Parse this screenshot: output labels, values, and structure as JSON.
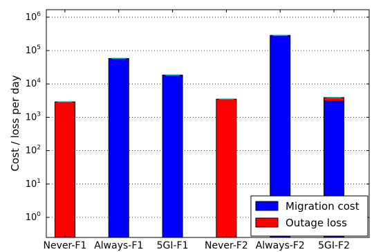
{
  "chart_data": {
    "type": "bar",
    "stacked": true,
    "yscale": "symlog",
    "ylabel": "Cost / loss per day",
    "xlabel": "",
    "title": "",
    "categories": [
      "Never-F1",
      "Always-F1",
      "5GI-F1",
      "Never-F2",
      "Always-F2",
      "5GI-F2"
    ],
    "series": [
      {
        "name": "Migration cost",
        "color": "#0000ff",
        "values": [
          0,
          58000,
          18500,
          0,
          285000,
          3100
        ]
      },
      {
        "name": "Outage loss",
        "color": "#ff0000",
        "values": [
          2900,
          0,
          0,
          3500,
          0,
          800
        ]
      }
    ],
    "ylim": [
      0,
      1000000
    ],
    "y_ticks": [
      {
        "base": "10",
        "exp": "0",
        "value": 1
      },
      {
        "base": "10",
        "exp": "1",
        "value": 10
      },
      {
        "base": "10",
        "exp": "2",
        "value": 100
      },
      {
        "base": "10",
        "exp": "3",
        "value": 1000
      },
      {
        "base": "10",
        "exp": "4",
        "value": 10000
      },
      {
        "base": "10",
        "exp": "5",
        "value": 100000
      },
      {
        "base": "10",
        "exp": "6",
        "value": 1000000
      }
    ],
    "grid": true,
    "legend_position": "bottom-right",
    "errorbar_color": "#00aaaa"
  }
}
